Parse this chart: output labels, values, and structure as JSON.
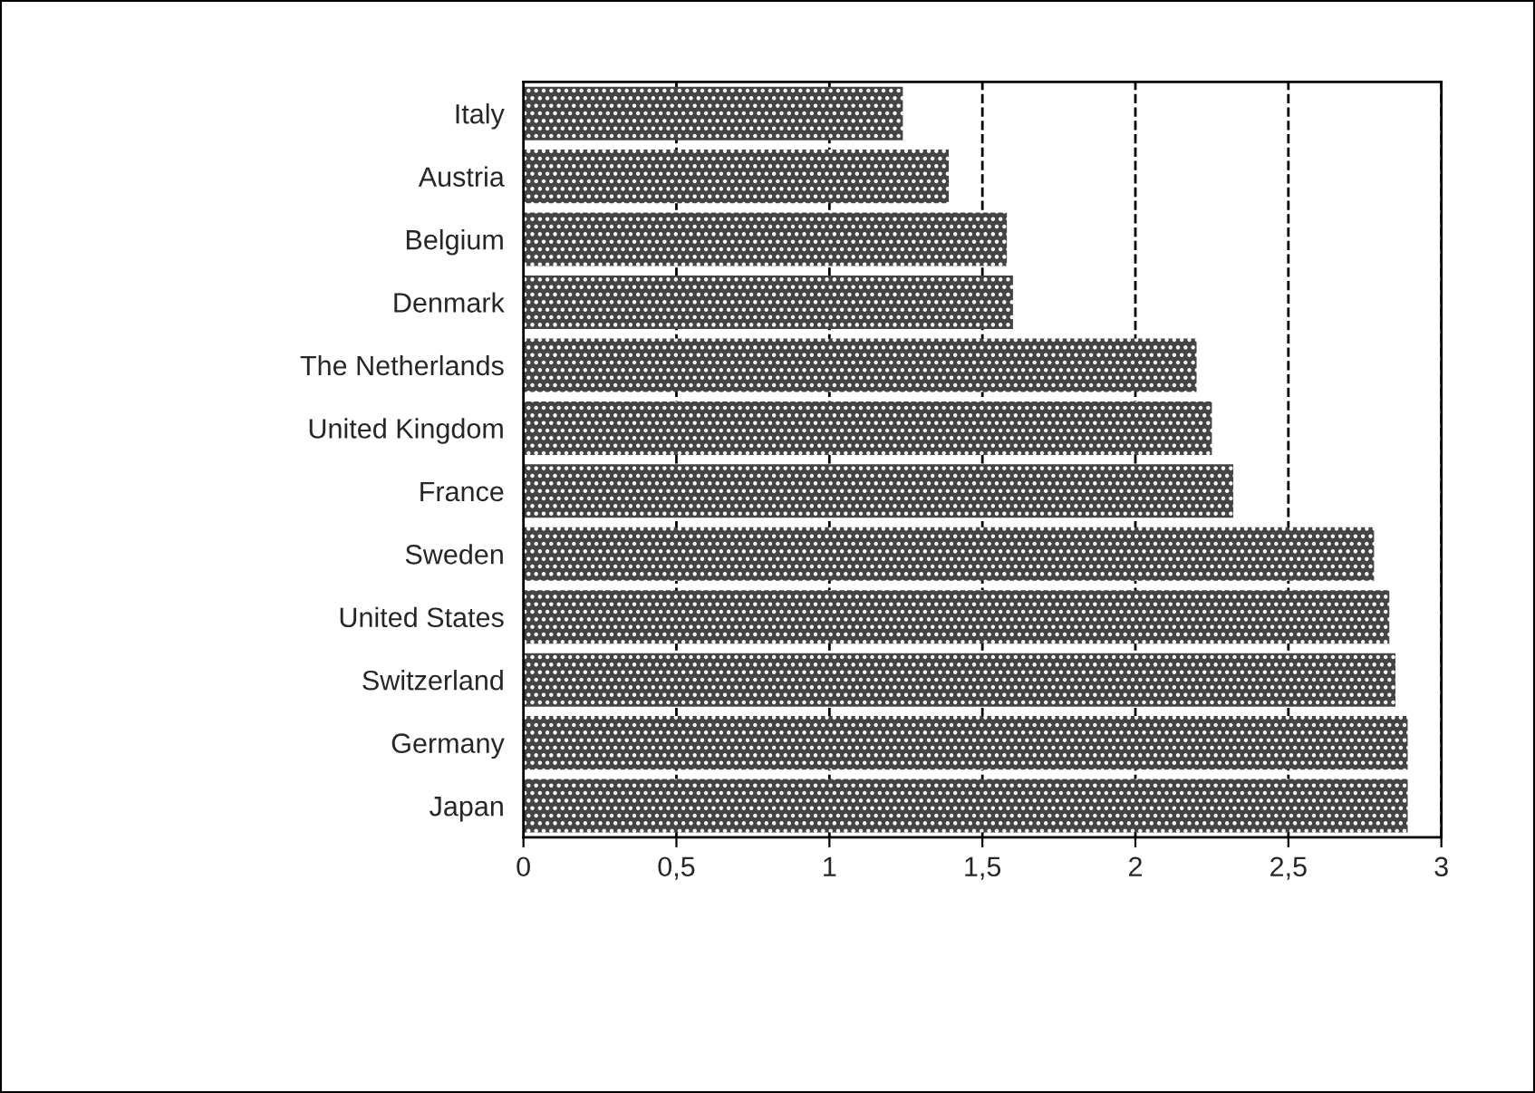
{
  "chart_data": {
    "type": "bar",
    "orientation": "horizontal",
    "categories": [
      "Italy",
      "Austria",
      "Belgium",
      "Denmark",
      "The Netherlands",
      "United Kingdom",
      "France",
      "Sweden",
      "United States",
      "Switzerland",
      "Germany",
      "Japan"
    ],
    "values": [
      1.24,
      1.39,
      1.58,
      1.6,
      2.2,
      2.25,
      2.32,
      2.78,
      2.83,
      2.85,
      2.89,
      2.89
    ],
    "color": "#444444",
    "xlim": [
      0,
      3
    ],
    "xticks": [
      0,
      {
        "value": 0.5,
        "label": "0,5"
      },
      1,
      {
        "value": 1.5,
        "label": "1,5"
      },
      2,
      {
        "value": 2.5,
        "label": "2,5"
      },
      3
    ],
    "grid": "x",
    "line_style": "dashed"
  }
}
